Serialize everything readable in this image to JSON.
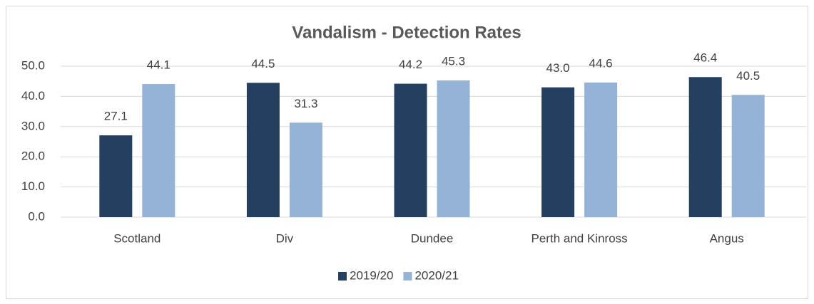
{
  "chart_data": {
    "type": "bar",
    "title": "Vandalism - Detection Rates",
    "categories": [
      "Scotland",
      "Div",
      "Dundee",
      "Perth and Kinross",
      "Angus"
    ],
    "series": [
      {
        "name": "2019/20",
        "color": "#243f60",
        "values": [
          27.1,
          44.5,
          44.2,
          43.0,
          46.4
        ],
        "value_labels": [
          "27.1",
          "44.5",
          "44.2",
          "43.0",
          "46.4"
        ]
      },
      {
        "name": "2020/21",
        "color": "#95b3d7",
        "values": [
          44.1,
          31.3,
          45.3,
          44.6,
          40.5
        ]
      }
    ],
    "ylim": [
      0,
      50
    ],
    "yticks": [
      {
        "value": 0,
        "label": "0.0"
      },
      {
        "value": 10,
        "label": "10.0"
      },
      {
        "value": 20,
        "label": "20.0"
      },
      {
        "value": 30,
        "label": "30.0"
      },
      {
        "value": 40,
        "label": "40.0"
      },
      {
        "value": 50,
        "label": "50.0"
      }
    ],
    "grid": true,
    "legend": "bottom"
  }
}
